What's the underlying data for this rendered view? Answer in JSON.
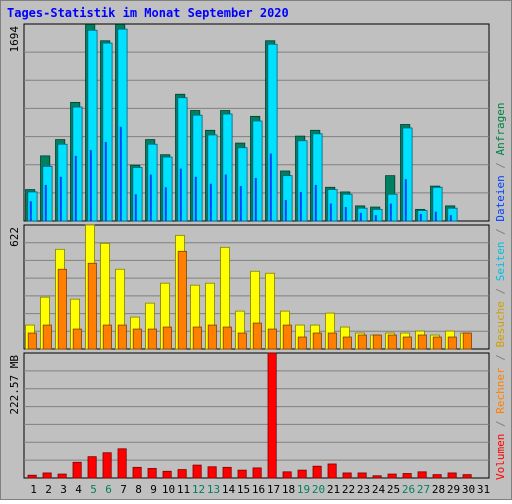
{
  "title": "Tages-Statistik im Monat September 2020",
  "colors": {
    "background": "#c0c0c0",
    "title": "#0000ff",
    "anfragen": "#008040",
    "dateien": "#0040ff",
    "seiten": "#00e0ff",
    "besuche": "#ffff00",
    "rechner": "#ff8000",
    "volumen": "#ff0000"
  },
  "legend": {
    "right": [
      {
        "label": "Anfragen",
        "color": "#008040"
      },
      {
        "label": "Dateien",
        "color": "#0040ff"
      },
      {
        "label": "Seiten",
        "color": "#00c0e0"
      },
      {
        "label": "Besuche",
        "color": "#d0a000"
      },
      {
        "label": "Rechner",
        "color": "#ff8000"
      },
      {
        "label": "Volumen",
        "color": "#ff0000"
      }
    ],
    "separator": " / "
  },
  "chart_data": [
    {
      "type": "bar",
      "panel": "top",
      "ymax_label": "1694",
      "ylim": [
        0,
        1694
      ],
      "x": [
        "1",
        "2",
        "3",
        "4",
        "5",
        "6",
        "7",
        "8",
        "9",
        "10",
        "11",
        "12",
        "13",
        "14",
        "15",
        "16",
        "17",
        "18",
        "19",
        "20",
        "21",
        "22",
        "23",
        "24",
        "25",
        "26",
        "27",
        "28",
        "29",
        "30",
        "31"
      ],
      "weekend_days": [
        "5",
        "6",
        "12",
        "13",
        "19",
        "20",
        "26",
        "27"
      ],
      "series": [
        {
          "name": "Anfragen",
          "values": [
            270,
            560,
            700,
            1020,
            1690,
            1550,
            1690,
            480,
            700,
            570,
            1090,
            950,
            780,
            950,
            670,
            900,
            1550,
            430,
            730,
            780,
            290,
            250,
            130,
            120,
            390,
            830,
            100,
            300,
            130,
            0,
            0
          ]
        },
        {
          "name": "Seiten",
          "values": [
            250,
            470,
            660,
            980,
            1640,
            1530,
            1650,
            460,
            660,
            550,
            1060,
            910,
            740,
            920,
            630,
            860,
            1520,
            390,
            690,
            750,
            270,
            230,
            110,
            100,
            230,
            800,
            90,
            290,
            110,
            0,
            0
          ]
        },
        {
          "name": "Dateien",
          "values": [
            170,
            310,
            380,
            560,
            610,
            680,
            810,
            230,
            400,
            290,
            450,
            380,
            320,
            400,
            300,
            370,
            580,
            180,
            250,
            310,
            150,
            120,
            70,
            50,
            150,
            360,
            60,
            80,
            50,
            0,
            0
          ]
        }
      ]
    },
    {
      "type": "bar",
      "panel": "middle",
      "ymax_label": "622",
      "ylim": [
        0,
        622
      ],
      "series": [
        {
          "name": "Besuche",
          "values": [
            120,
            260,
            500,
            250,
            622,
            530,
            400,
            160,
            230,
            330,
            570,
            320,
            330,
            510,
            190,
            390,
            380,
            190,
            120,
            120,
            180,
            110,
            80,
            70,
            80,
            80,
            90,
            70,
            90,
            80,
            0
          ]
        },
        {
          "name": "Rechner",
          "values": [
            80,
            120,
            400,
            100,
            430,
            120,
            120,
            100,
            100,
            110,
            490,
            110,
            120,
            110,
            80,
            130,
            100,
            120,
            60,
            80,
            80,
            60,
            70,
            70,
            70,
            60,
            70,
            60,
            60,
            80,
            0
          ]
        }
      ]
    },
    {
      "type": "bar",
      "panel": "bottom",
      "ymax_label": "222.57 MB",
      "ylim": [
        0,
        222.57
      ],
      "series": [
        {
          "name": "Volumen",
          "values": [
            5,
            9,
            7,
            28,
            38,
            45,
            52,
            19,
            17,
            12,
            15,
            23,
            20,
            19,
            14,
            18,
            222.57,
            11,
            14,
            21,
            25,
            9,
            9,
            4,
            7,
            8,
            11,
            6,
            9,
            6,
            0
          ]
        }
      ]
    }
  ]
}
